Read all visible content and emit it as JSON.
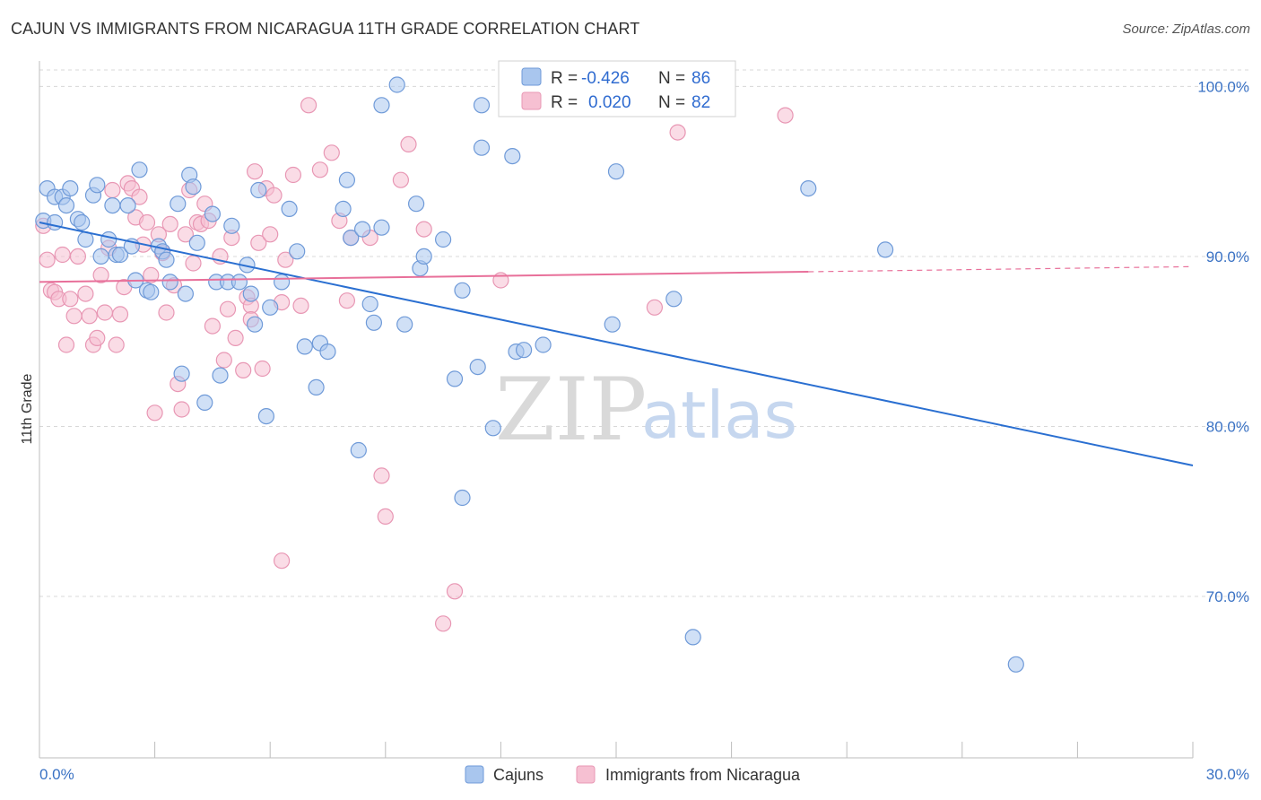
{
  "header": {
    "title": "CAJUN VS IMMIGRANTS FROM NICARAGUA 11TH GRADE CORRELATION CHART",
    "source": "Source: ZipAtlas.com"
  },
  "watermark": {
    "zip": "ZIP",
    "atlas": "atlas"
  },
  "legend_top": {
    "rows": [
      {
        "r_label": "R =",
        "r_value": "-0.426",
        "n_label": "N =",
        "n_value": "86"
      },
      {
        "r_label": "R =",
        "r_value": "0.020",
        "n_label": "N =",
        "n_value": "82"
      }
    ]
  },
  "legend_bottom": {
    "items": [
      {
        "label": "Cajuns"
      },
      {
        "label": "Immigrants from Nicaragua"
      }
    ]
  },
  "colors": {
    "blue_fill": "#a9c6ee",
    "blue_stroke": "#6f9ad8",
    "blue_line": "#2a6fd1",
    "pink_fill": "#f6c0d2",
    "pink_stroke": "#e897b4",
    "pink_line": "#e8709a",
    "grid": "#d8d8d8",
    "tick_label": "#3a72c4"
  },
  "chart_data": {
    "type": "scatter",
    "title": "CAJUN VS IMMIGRANTS FROM NICARAGUA 11TH GRADE CORRELATION CHART",
    "ylabel": "11th Grade",
    "xlabel": "",
    "xlim": [
      0,
      30
    ],
    "ylim": [
      60.5,
      101.5
    ],
    "x_tick_labels": [
      "0.0%",
      "30.0%"
    ],
    "y_ticks": [
      {
        "value": 70,
        "label": "70.0%"
      },
      {
        "value": 80,
        "label": "80.0%"
      },
      {
        "value": 90,
        "label": "90.0%"
      },
      {
        "value": 100,
        "label": "100.0%"
      }
    ],
    "grid": "horizontal dashed",
    "legend_placement": "bottom-center",
    "series": [
      {
        "name": "Cajuns",
        "r": -0.426,
        "n": 86,
        "trend": {
          "x": [
            0,
            30
          ],
          "y": [
            92.0,
            77.7
          ],
          "dashed_from": null
        },
        "points": [
          [
            0.1,
            92.1
          ],
          [
            0.2,
            94.0
          ],
          [
            0.4,
            93.5
          ],
          [
            0.4,
            92.0
          ],
          [
            0.6,
            93.5
          ],
          [
            0.7,
            93.0
          ],
          [
            0.8,
            94.0
          ],
          [
            1.0,
            92.2
          ],
          [
            1.1,
            92.0
          ],
          [
            1.2,
            91.0
          ],
          [
            1.4,
            93.6
          ],
          [
            1.5,
            94.2
          ],
          [
            1.6,
            90.0
          ],
          [
            1.8,
            91.0
          ],
          [
            1.9,
            93.0
          ],
          [
            2.0,
            90.1
          ],
          [
            2.1,
            90.1
          ],
          [
            2.3,
            93.0
          ],
          [
            2.4,
            90.6
          ],
          [
            2.5,
            88.6
          ],
          [
            2.6,
            95.1
          ],
          [
            2.8,
            88.0
          ],
          [
            2.9,
            87.9
          ],
          [
            3.1,
            90.6
          ],
          [
            3.2,
            90.3
          ],
          [
            3.3,
            89.8
          ],
          [
            3.4,
            88.5
          ],
          [
            3.6,
            93.1
          ],
          [
            3.7,
            83.1
          ],
          [
            3.8,
            87.8
          ],
          [
            3.9,
            94.8
          ],
          [
            4.0,
            94.1
          ],
          [
            4.1,
            90.8
          ],
          [
            4.3,
            81.4
          ],
          [
            4.5,
            92.5
          ],
          [
            4.6,
            88.5
          ],
          [
            4.7,
            83.0
          ],
          [
            4.9,
            88.5
          ],
          [
            5.0,
            91.8
          ],
          [
            5.2,
            88.5
          ],
          [
            5.4,
            89.5
          ],
          [
            5.5,
            87.8
          ],
          [
            5.6,
            86.0
          ],
          [
            5.7,
            93.9
          ],
          [
            5.9,
            80.6
          ],
          [
            6.0,
            87.0
          ],
          [
            6.3,
            88.5
          ],
          [
            6.5,
            92.8
          ],
          [
            6.7,
            90.3
          ],
          [
            6.9,
            84.7
          ],
          [
            7.2,
            82.3
          ],
          [
            7.3,
            84.9
          ],
          [
            7.5,
            84.4
          ],
          [
            7.9,
            92.8
          ],
          [
            8.0,
            94.5
          ],
          [
            8.1,
            91.1
          ],
          [
            8.3,
            78.6
          ],
          [
            8.4,
            91.6
          ],
          [
            8.6,
            87.2
          ],
          [
            8.7,
            86.1
          ],
          [
            8.9,
            91.7
          ],
          [
            8.9,
            98.9
          ],
          [
            9.3,
            100.1
          ],
          [
            9.5,
            86.0
          ],
          [
            9.8,
            93.1
          ],
          [
            9.9,
            89.3
          ],
          [
            10.0,
            90.0
          ],
          [
            10.5,
            91.0
          ],
          [
            10.8,
            82.8
          ],
          [
            11.0,
            88.0
          ],
          [
            11.0,
            75.8
          ],
          [
            11.4,
            83.5
          ],
          [
            11.5,
            96.4
          ],
          [
            11.5,
            98.9
          ],
          [
            11.8,
            79.9
          ],
          [
            12.3,
            95.9
          ],
          [
            12.4,
            84.4
          ],
          [
            12.6,
            84.5
          ],
          [
            13.1,
            84.8
          ],
          [
            14.9,
            86.0
          ],
          [
            15.0,
            95.0
          ],
          [
            16.5,
            87.5
          ],
          [
            17.0,
            67.6
          ],
          [
            20.0,
            94.0
          ],
          [
            22.0,
            90.4
          ],
          [
            25.4,
            66.0
          ]
        ]
      },
      {
        "name": "Immigrants from Nicaragua",
        "r": 0.02,
        "n": 82,
        "trend": {
          "x": [
            0,
            30
          ],
          "y": [
            88.5,
            89.4
          ],
          "dashed_from": 20.0
        },
        "points": [
          [
            0.1,
            91.8
          ],
          [
            0.2,
            89.8
          ],
          [
            0.3,
            88.0
          ],
          [
            0.4,
            87.9
          ],
          [
            0.5,
            87.5
          ],
          [
            0.6,
            90.1
          ],
          [
            0.7,
            84.8
          ],
          [
            0.8,
            87.5
          ],
          [
            0.9,
            86.5
          ],
          [
            1.0,
            90.0
          ],
          [
            1.2,
            87.8
          ],
          [
            1.3,
            86.5
          ],
          [
            1.4,
            84.8
          ],
          [
            1.5,
            85.2
          ],
          [
            1.6,
            88.9
          ],
          [
            1.7,
            86.7
          ],
          [
            1.8,
            90.5
          ],
          [
            1.9,
            93.9
          ],
          [
            2.0,
            84.8
          ],
          [
            2.1,
            86.6
          ],
          [
            2.2,
            88.2
          ],
          [
            2.3,
            94.3
          ],
          [
            2.4,
            94.0
          ],
          [
            2.5,
            92.3
          ],
          [
            2.6,
            93.5
          ],
          [
            2.7,
            90.7
          ],
          [
            2.8,
            92.0
          ],
          [
            2.9,
            88.9
          ],
          [
            3.0,
            80.8
          ],
          [
            3.1,
            91.3
          ],
          [
            3.2,
            90.2
          ],
          [
            3.3,
            86.7
          ],
          [
            3.4,
            91.9
          ],
          [
            3.5,
            88.3
          ],
          [
            3.6,
            82.5
          ],
          [
            3.7,
            81.0
          ],
          [
            3.8,
            91.3
          ],
          [
            3.9,
            93.9
          ],
          [
            4.0,
            89.6
          ],
          [
            4.1,
            92.0
          ],
          [
            4.2,
            91.9
          ],
          [
            4.3,
            93.1
          ],
          [
            4.4,
            92.1
          ],
          [
            4.5,
            85.9
          ],
          [
            4.7,
            90.0
          ],
          [
            4.8,
            83.9
          ],
          [
            4.9,
            86.9
          ],
          [
            5.0,
            91.1
          ],
          [
            5.1,
            85.2
          ],
          [
            5.3,
            83.3
          ],
          [
            5.4,
            87.6
          ],
          [
            5.5,
            87.1
          ],
          [
            5.6,
            95.0
          ],
          [
            5.7,
            90.8
          ],
          [
            5.8,
            83.4
          ],
          [
            5.9,
            94.0
          ],
          [
            6.0,
            91.3
          ],
          [
            6.1,
            93.6
          ],
          [
            6.3,
            87.3
          ],
          [
            6.4,
            89.8
          ],
          [
            6.6,
            94.8
          ],
          [
            6.8,
            87.1
          ],
          [
            7.0,
            98.9
          ],
          [
            7.3,
            95.1
          ],
          [
            7.6,
            96.1
          ],
          [
            7.8,
            92.1
          ],
          [
            8.0,
            87.4
          ],
          [
            8.1,
            91.1
          ],
          [
            8.6,
            91.1
          ],
          [
            8.9,
            77.1
          ],
          [
            9.0,
            74.7
          ],
          [
            9.4,
            94.5
          ],
          [
            9.6,
            96.6
          ],
          [
            10.0,
            91.6
          ],
          [
            10.5,
            68.4
          ],
          [
            10.8,
            70.3
          ],
          [
            6.3,
            72.1
          ],
          [
            5.5,
            86.3
          ],
          [
            12.0,
            88.6
          ],
          [
            16.0,
            87.0
          ],
          [
            16.6,
            97.3
          ],
          [
            19.4,
            98.3
          ]
        ]
      }
    ]
  }
}
